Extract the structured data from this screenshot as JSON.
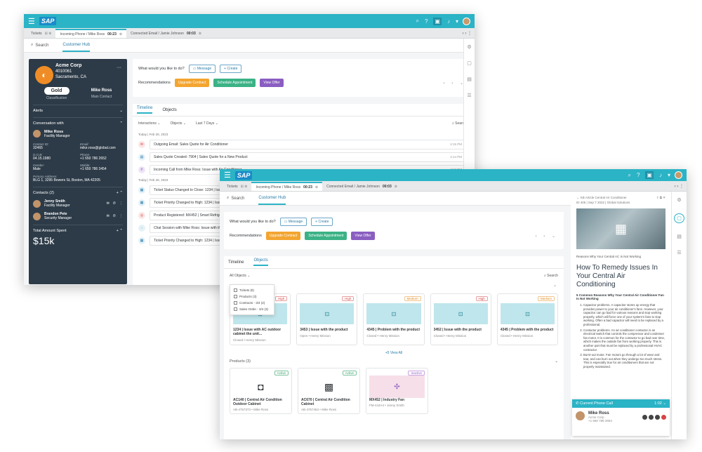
{
  "shell": {
    "brand": "SAP"
  },
  "w1": {
    "tabs": [
      {
        "label": "Tickets",
        "time": ""
      },
      {
        "label": "Incoming Phone / Mike Ross",
        "time": "00:23"
      },
      {
        "label": "Connected Email / Jamie Johnson",
        "time": "00:03"
      }
    ],
    "subtabs": {
      "search": "Search",
      "hub": "Customer Hub"
    },
    "customer": {
      "name": "Acme Corp",
      "id": "4010061",
      "city": "Sacramento, CA",
      "tier": "Gold",
      "tier_label": "Classification",
      "contact": "Mike Ross",
      "contact_label": "Main Contact"
    },
    "alerts": "Alerts",
    "conversation": "Conversation with",
    "person": {
      "name": "Mike Ross",
      "role": "Facility Manager"
    },
    "fields": [
      {
        "label": "Contact ID:",
        "value": "32465"
      },
      {
        "label": "Email:",
        "value": "mike.ross@global.com"
      },
      {
        "label": "D.O.B:",
        "value": "04.15.1980"
      },
      {
        "label": "Phone:",
        "value": "+1 650 786 2652"
      },
      {
        "label": "Gender:",
        "value": "Male"
      },
      {
        "label": "Mobile:",
        "value": "+1 650 786 3454"
      }
    ],
    "address_label": "Primary Address:",
    "address": "BLG 1, 3295 Bowers St, Boston, MA 42205",
    "contacts_title": "Contacts (2)",
    "contacts": [
      {
        "name": "Jenny Smith",
        "role": "Facility Manager"
      },
      {
        "name": "Brandon Pete",
        "role": "Security Manager"
      }
    ],
    "spent_label": "Total Amount Spent",
    "spent": "$15k",
    "prompt": "What would you like to do?",
    "message_btn": "Message",
    "create_btn": "+ Create",
    "rec_label": "Recommendations",
    "recs": [
      "Upgrade Contract",
      "Schedule Appointment",
      "View Offer"
    ],
    "tl_tabs": [
      "Timeline",
      "Objects"
    ],
    "filters": [
      "Interactions",
      "Objects",
      "Last 7 Days"
    ],
    "search": "Search",
    "day1": "Today | Feb 28, 2023",
    "items1": [
      {
        "text": "Outgoing Email: Sales Quote for Air Conditioner",
        "time": "4:15 PM"
      },
      {
        "text": "Sales Quote Created: 7904 | Sales Quote for a New Product",
        "time": "4:14 PM"
      },
      {
        "text": "Incoming Call from Mike Ross: Issue with Air Conditioner",
        "time": "4:12 PM"
      }
    ],
    "day2": "Today | Feb 28, 2023",
    "items2": [
      {
        "text": "Ticket Status Changed to Close: 1234 | Issue with AC",
        "time": ""
      },
      {
        "text": "Ticket Priority Changed to High: 1234 | Issue with AC",
        "time": ""
      },
      {
        "text": "Product Registered: MX452 | Smart Refrigerator",
        "time": ""
      },
      {
        "text": "Chat Session with Mike Ross: Issue with the AC unit",
        "time": ""
      },
      {
        "text": "Ticket Priority Changed to High: 1234 | Issue",
        "time": ""
      }
    ]
  },
  "w2": {
    "tabs": [
      {
        "label": "Tickets",
        "time": ""
      },
      {
        "label": "Incoming Phone / Mike Ross",
        "time": "00:23"
      },
      {
        "label": "Connected Email / Jamie Johnson",
        "time": "00:03"
      }
    ],
    "subtabs": {
      "search": "Search",
      "hub": "Customer Hub"
    },
    "prompt": "What would you like to do?",
    "message_btn": "Message",
    "create_btn": "+ Create",
    "rec_label": "Recommendations",
    "recs": [
      "Upgrade Contract",
      "Schedule Appointment",
      "View Offer"
    ],
    "tl_tabs": [
      "Timeline",
      "Objects"
    ],
    "filter": "All Objects",
    "search": "Search",
    "dropdown": [
      "Tickets (8)",
      "Products (3)",
      "Contracts - 3/4 (2)",
      "Sales Order - 3/4 (3)"
    ],
    "tickets": [
      {
        "title": "1234 | Issue with AC outdoor cabinet the unit...",
        "meta": "Closed • Henry Mission",
        "priority": "High",
        "level": "high"
      },
      {
        "title": "3453 | Issue with the product",
        "meta": "Open • Henry Mission",
        "priority": "High",
        "level": "high"
      },
      {
        "title": "4345 | Problem with the product",
        "meta": "Closed • Henry Mission",
        "priority": "Medium",
        "level": "med"
      },
      {
        "title": "3452 | Issue with the product",
        "meta": "Closed • Henry Mission",
        "priority": "High",
        "level": "high"
      },
      {
        "title": "4345 | Problem with the product",
        "meta": "Closed • Henry Mission",
        "priority": "Medium",
        "level": "med"
      }
    ],
    "view_all": "+5 View All",
    "products_title": "Products (3)",
    "products": [
      {
        "title": "AC140 | Central Air Condition Outdoor Cabinet",
        "meta": "AB-4757373 • Mike Ross",
        "status": "Active"
      },
      {
        "title": "AC670 | Central Air Condition Cabinet",
        "meta": "AB-4757453 • Mike Ross",
        "status": "Active"
      },
      {
        "title": "MX452 | Industry Fan",
        "meta": "FM-444A4 • Jenny Smith",
        "status": "Inactive"
      }
    ],
    "article": {
      "back": "KB Article Central Air Conditioner",
      "meta": "ID 405  |  Sep 7 2022  |  Global Solutions",
      "caption": "Reasons Why Your Central AC Is Not Working",
      "title": "How To Remedy Issues In Your Central Air Conditioning",
      "subhead": "5 Common Reasons Why Your Central Air Conditioner Fan Is Not Working",
      "points": [
        "Capacitor problems. A capacitor stores up energy that provides power to your air conditioner's fans. However, your capacitor can go bad for various reasons and stop working properly, which will force one of your system's fans to stop working. Often a bad capacitor will need to be replaced by a professional.",
        "Contactor problems. An air conditioner contactor is an electrical switch that controls the compressor and condenser fan motor. It is common for the contactor to go bad over time, which makes the outside fan from working properly. This is another part that must be replaced by a professional HVAC contractor.",
        "Burnt-out motor. Fan motors go through a lot of wear and tear, and can burn out when they undergo too much stress. This is especially true for air conditioners that are not properly maintained."
      ]
    },
    "call": {
      "label": "Current Phone Call",
      "time": "1:02",
      "name": "Mike Ross",
      "company": "Acme Corp",
      "phone": "+1 650 786 2654"
    }
  }
}
